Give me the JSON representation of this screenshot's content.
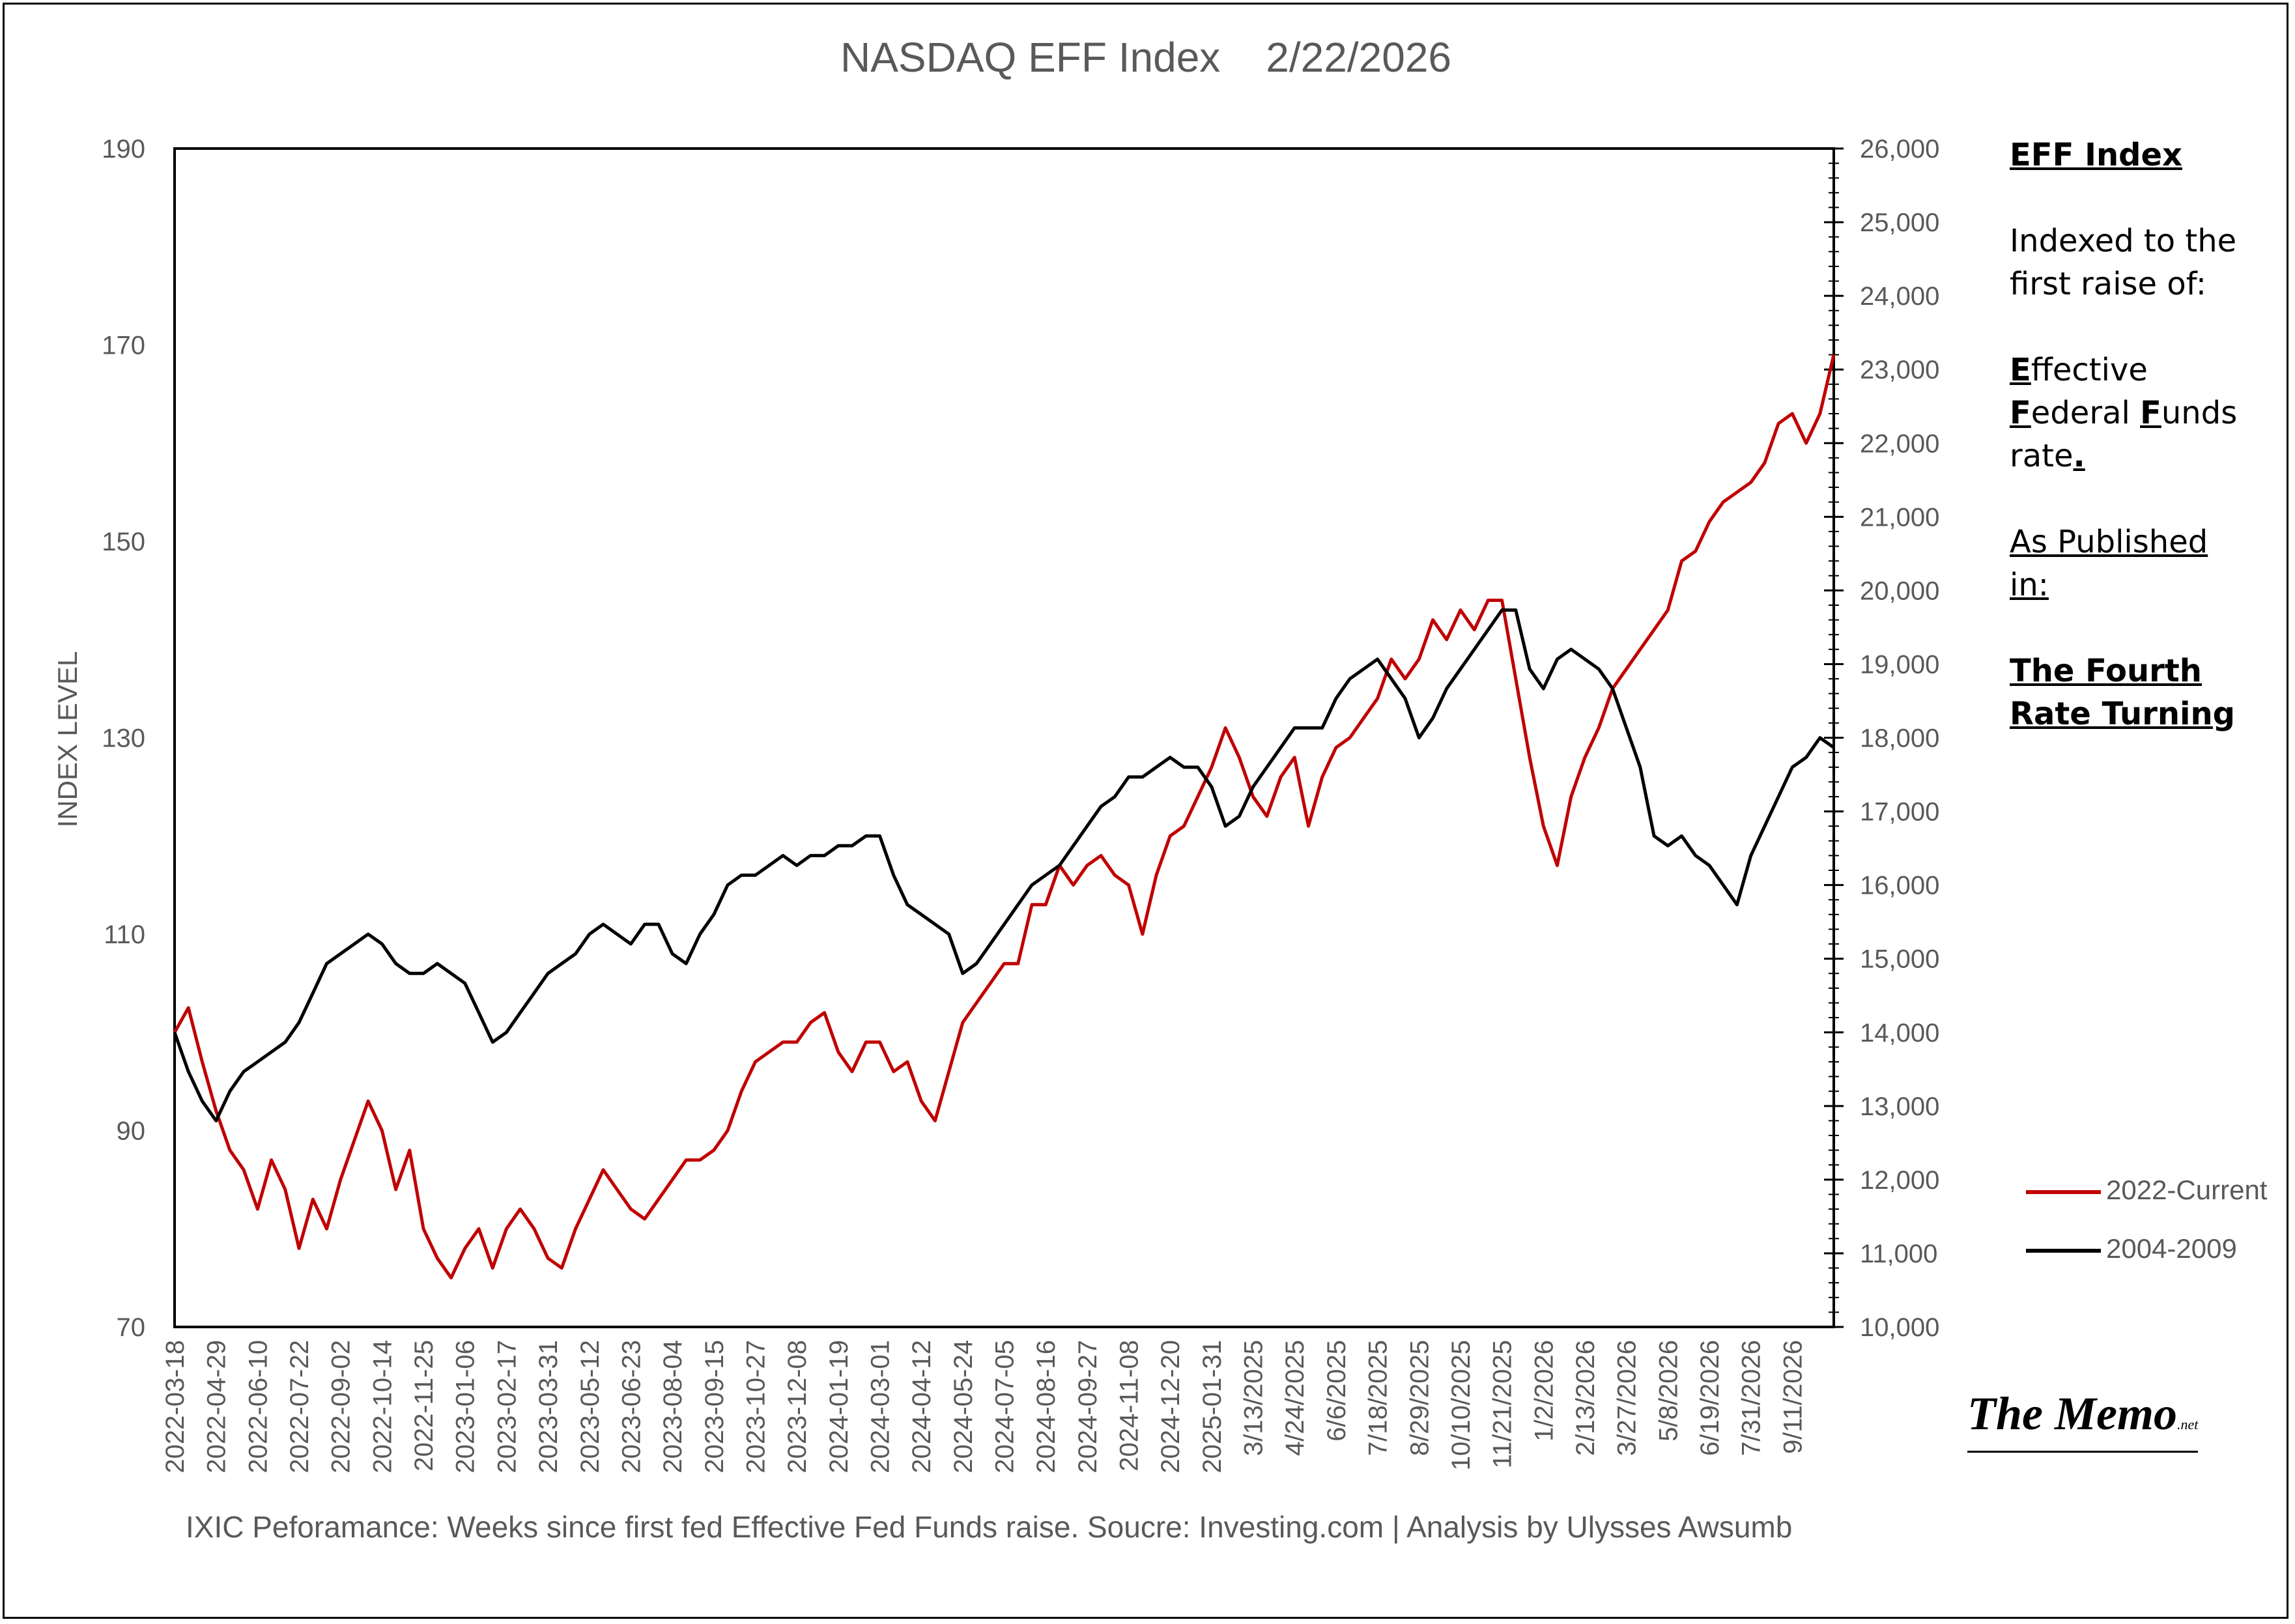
{
  "chart_data": {
    "type": "line",
    "title": "NASDAQ EFF Index",
    "date": "2/22/2026",
    "ylabel": "INDEX LEVEL",
    "ylim": [
      70,
      190
    ],
    "yticks": [
      70,
      90,
      110,
      130,
      150,
      170,
      190
    ],
    "y2lim": [
      10000,
      26000
    ],
    "y2ticks": [
      "10,000",
      "11,000",
      "12,000",
      "13,000",
      "14,000",
      "15,000",
      "16,000",
      "17,000",
      "18,000",
      "19,000",
      "20,000",
      "21,000",
      "22,000",
      "23,000",
      "24,000",
      "25,000",
      "26,000"
    ],
    "x_count": 121,
    "x_tick_labels": [
      "2022-03-18",
      "2022-04-29",
      "2022-06-10",
      "2022-07-22",
      "2022-09-02",
      "2022-10-14",
      "2022-11-25",
      "2023-01-06",
      "2023-02-17",
      "2023-03-31",
      "2023-05-12",
      "2023-06-23",
      "2023-08-04",
      "2023-09-15",
      "2023-10-27",
      "2023-12-08",
      "2024-01-19",
      "2024-03-01",
      "2024-04-12",
      "2024-05-24",
      "2024-07-05",
      "2024-08-16",
      "2024-09-27",
      "2024-11-08",
      "2024-12-20",
      "2025-01-31",
      "3/13/2025",
      "4/24/2025",
      "6/6/2025",
      "7/18/2025",
      "8/29/2025",
      "10/10/2025",
      "11/21/2025",
      "1/2/2026",
      "2/13/2026",
      "3/27/2026",
      "5/8/2026",
      "6/19/2026",
      "7/31/2026",
      "9/11/2026"
    ],
    "legend_position": "right",
    "grid": false,
    "series": [
      {
        "name": "2022-Current",
        "color": "#c00000",
        "values": [
          100,
          102.5,
          97,
          92,
          88,
          86,
          82,
          87,
          84,
          78,
          83,
          80,
          85,
          89,
          93,
          90,
          84,
          88,
          80,
          77,
          75,
          78,
          80,
          76,
          80,
          82,
          80,
          77,
          76,
          80,
          83,
          86,
          84,
          82,
          81,
          83,
          85,
          87,
          87,
          88,
          90,
          94,
          97,
          98,
          99,
          99,
          101,
          102,
          98,
          96,
          99,
          99,
          96,
          97,
          93,
          91,
          96,
          101,
          103,
          105,
          107,
          107,
          113,
          113,
          117,
          115,
          117,
          118,
          116,
          115,
          110,
          116,
          120,
          121,
          124,
          127,
          131,
          128,
          124,
          122,
          126,
          128,
          121,
          126,
          129,
          130,
          132,
          134,
          138,
          136,
          138,
          142,
          140,
          143,
          141,
          144,
          144,
          136,
          128,
          121,
          117,
          124,
          128,
          131,
          135,
          137,
          139,
          141,
          143,
          148,
          149,
          152,
          154,
          155,
          156,
          158,
          162,
          163,
          160,
          163,
          169
        ]
      },
      {
        "name": "2004-2009",
        "color": "#000000",
        "values": [
          100,
          96,
          93,
          91,
          94,
          96,
          97,
          98,
          99,
          101,
          104,
          107,
          108,
          109,
          110,
          109,
          107,
          106,
          106,
          107,
          106,
          105,
          102,
          99,
          100,
          102,
          104,
          106,
          107,
          108,
          110,
          111,
          110,
          109,
          111,
          111,
          108,
          107,
          110,
          112,
          115,
          116,
          116,
          117,
          118,
          117,
          118,
          118,
          119,
          119,
          120,
          120,
          116,
          113,
          112,
          111,
          110,
          106,
          107,
          109,
          111,
          113,
          115,
          116,
          117,
          119,
          121,
          123,
          124,
          126,
          126,
          127,
          128,
          127,
          127,
          125,
          121,
          122,
          125,
          127,
          129,
          131,
          131,
          131,
          134,
          136,
          137,
          138,
          136,
          134,
          130,
          132,
          135,
          137,
          139,
          141,
          143,
          143,
          137,
          135,
          138,
          139,
          138,
          137,
          135,
          131,
          127,
          120,
          119,
          120,
          118,
          117,
          115,
          113,
          118,
          121,
          124,
          127,
          128,
          130,
          129
        ]
      }
    ]
  },
  "side_panel": {
    "heading": "EFF Index",
    "line1": "Indexed to the",
    "line2": "first raise of:",
    "eff_e": "E",
    "eff_rest": "ffective",
    "fed_f": "F",
    "fed_mid": "ederal ",
    "funds_f": "F",
    "funds_rest": "unds",
    "rate": "rate",
    "rate_dot": ".",
    "published1": "As Published",
    "published2": "in:",
    "book1": "The Fourth",
    "book2": "Rate Turning"
  },
  "footer": "IXIC Peforamance: Weeks since first fed Effective Fed Funds raise.   Soucre: Investing.com | Analysis by Ulysses Awsumb",
  "logo": {
    "main": "The Memo",
    "suffix": ".net"
  }
}
